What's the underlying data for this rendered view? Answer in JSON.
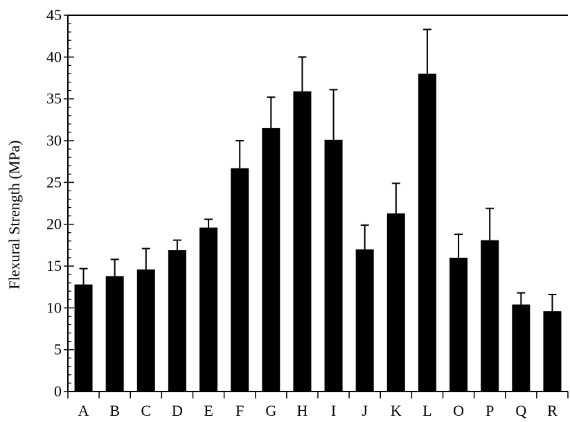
{
  "chart_data": {
    "type": "bar",
    "ylabel": "Flexural Strength (MPa)",
    "xlabel": "",
    "ylim": [
      0,
      45
    ],
    "yticks": [
      0,
      5,
      10,
      15,
      20,
      25,
      30,
      35,
      40,
      45
    ],
    "minor_tick_step": 1,
    "grid": false,
    "categories": [
      "A",
      "B",
      "C",
      "D",
      "E",
      "F",
      "G",
      "H",
      "I",
      "J",
      "K",
      "L",
      "O",
      "P",
      "Q",
      "R"
    ],
    "values": [
      12.8,
      13.8,
      14.6,
      16.9,
      19.6,
      26.7,
      31.5,
      35.9,
      30.1,
      17.0,
      21.3,
      38.0,
      16.0,
      18.1,
      10.4,
      9.6
    ],
    "error_upper": [
      14.7,
      15.8,
      17.1,
      18.1,
      20.6,
      30.0,
      35.2,
      40.0,
      36.1,
      19.9,
      24.9,
      43.3,
      18.8,
      21.9,
      11.8,
      11.6
    ],
    "colors": {
      "bar": "#000000",
      "axis": "#000000",
      "background": "#ffffff"
    }
  }
}
